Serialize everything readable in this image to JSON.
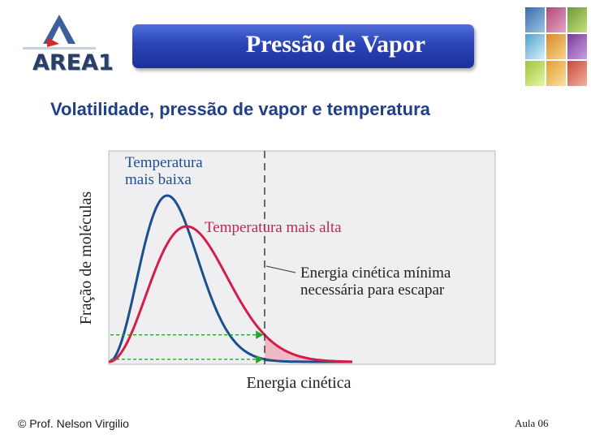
{
  "header": {
    "logo_text": "AREA1",
    "title": "Pressão de Vapor"
  },
  "subtitle": "Volatilidade, pressão de vapor e temperatura",
  "colors": {
    "banner_blue": "#2b45b8",
    "subtitle_blue": "#1f3f8a",
    "low_temp_curve": "#1d4f8f",
    "high_temp_curve": "#d21f4a",
    "threshold_arrow": "#2aa22a",
    "plot_background": "#efeff2"
  },
  "chart_data": {
    "type": "line",
    "ylabel": "Fração de moléculas",
    "xlabel": "Energia cinética",
    "series": [
      {
        "name": "Temperatura mais baixa"
      },
      {
        "name": "Temperatura mais alta"
      }
    ],
    "annotation": "Energia cinética mínima necessária para escapar",
    "grid": false
  },
  "footer": {
    "author": "© Prof. Nelson Virgilio",
    "lesson": "Aula 06"
  }
}
